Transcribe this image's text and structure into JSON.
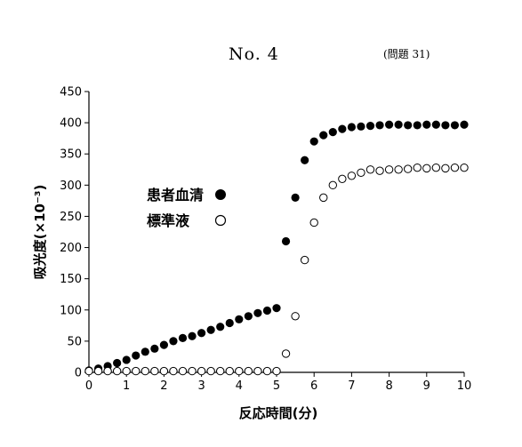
{
  "header": {
    "page_number": "No.  4",
    "question_ref": "(問題 31)"
  },
  "chart_data": {
    "type": "scatter",
    "title": "",
    "xlabel": "反応時間(分)",
    "ylabel": "吸光度(×10⁻³)",
    "xlim": [
      0,
      10
    ],
    "ylim": [
      0,
      450
    ],
    "x_ticks": [
      "0",
      "1",
      "2",
      "3",
      "4",
      "5",
      "6",
      "7",
      "8",
      "9",
      "10"
    ],
    "y_ticks": [
      "0",
      "50",
      "100",
      "150",
      "200",
      "250",
      "300",
      "350",
      "400",
      "450"
    ],
    "grid": false,
    "legend_position": "left-middle",
    "series": [
      {
        "name": "患者血清",
        "marker": "filled-circle",
        "color": "#000000",
        "points": [
          [
            0,
            3
          ],
          [
            0.25,
            6
          ],
          [
            0.5,
            10
          ],
          [
            0.75,
            15
          ],
          [
            1,
            20
          ],
          [
            1.25,
            27
          ],
          [
            1.5,
            33
          ],
          [
            1.75,
            38
          ],
          [
            2,
            44
          ],
          [
            2.25,
            50
          ],
          [
            2.5,
            55
          ],
          [
            2.75,
            58
          ],
          [
            3,
            63
          ],
          [
            3.25,
            68
          ],
          [
            3.5,
            73
          ],
          [
            3.75,
            79
          ],
          [
            4,
            85
          ],
          [
            4.25,
            90
          ],
          [
            4.5,
            95
          ],
          [
            4.75,
            99
          ],
          [
            5,
            103
          ],
          [
            5.25,
            210
          ],
          [
            5.5,
            280
          ],
          [
            5.75,
            340
          ],
          [
            6,
            370
          ],
          [
            6.25,
            380
          ],
          [
            6.5,
            385
          ],
          [
            6.75,
            390
          ],
          [
            7,
            393
          ],
          [
            7.25,
            394
          ],
          [
            7.5,
            395
          ],
          [
            7.75,
            396
          ],
          [
            8,
            397
          ],
          [
            8.25,
            397
          ],
          [
            8.5,
            396
          ],
          [
            8.75,
            396
          ],
          [
            9,
            397
          ],
          [
            9.25,
            397
          ],
          [
            9.5,
            396
          ],
          [
            9.75,
            396
          ],
          [
            10,
            397
          ]
        ]
      },
      {
        "name": "標準液",
        "marker": "open-circle",
        "color": "#000000",
        "points": [
          [
            0,
            2
          ],
          [
            0.25,
            2
          ],
          [
            0.5,
            2
          ],
          [
            0.75,
            2
          ],
          [
            1,
            2
          ],
          [
            1.25,
            2
          ],
          [
            1.5,
            2
          ],
          [
            1.75,
            2
          ],
          [
            2,
            2
          ],
          [
            2.25,
            2
          ],
          [
            2.5,
            2
          ],
          [
            2.75,
            2
          ],
          [
            3,
            2
          ],
          [
            3.25,
            2
          ],
          [
            3.5,
            2
          ],
          [
            3.75,
            2
          ],
          [
            4,
            2
          ],
          [
            4.25,
            2
          ],
          [
            4.5,
            2
          ],
          [
            4.75,
            2
          ],
          [
            5,
            2
          ],
          [
            5.25,
            30
          ],
          [
            5.5,
            90
          ],
          [
            5.75,
            180
          ],
          [
            6,
            240
          ],
          [
            6.25,
            280
          ],
          [
            6.5,
            300
          ],
          [
            6.75,
            310
          ],
          [
            7,
            315
          ],
          [
            7.25,
            320
          ],
          [
            7.5,
            325
          ],
          [
            7.75,
            323
          ],
          [
            8,
            325
          ],
          [
            8.25,
            325
          ],
          [
            8.5,
            326
          ],
          [
            8.75,
            328
          ],
          [
            9,
            327
          ],
          [
            9.25,
            328
          ],
          [
            9.5,
            327
          ],
          [
            9.75,
            328
          ],
          [
            10,
            328
          ]
        ]
      }
    ]
  }
}
